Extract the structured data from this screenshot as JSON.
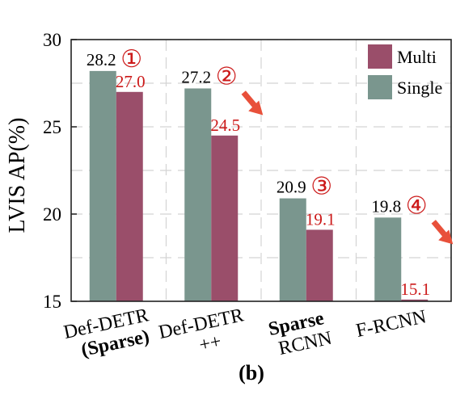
{
  "chart_data": {
    "type": "bar",
    "categories": [
      {
        "line1": "Def-DETR",
        "line2": "(Sparse)",
        "bold_line": 2
      },
      {
        "line1": "Def-DETR",
        "line2": "++",
        "bold_line": 0
      },
      {
        "line1": "Sparse",
        "line2": "RCNN",
        "bold_line": 1
      },
      {
        "line1": "F-RCNN",
        "line2": "",
        "bold_line": 0
      }
    ],
    "series": [
      {
        "name": "Single",
        "color": "#7a968e",
        "values": [
          28.2,
          27.2,
          20.9,
          19.8
        ]
      },
      {
        "name": "Multi",
        "color": "#9a4e6a",
        "values": [
          27.0,
          24.5,
          19.1,
          15.1
        ]
      }
    ],
    "value_labels": {
      "single": [
        "28.2",
        "27.2",
        "20.9",
        "19.8"
      ],
      "multi": [
        "27.0",
        "24.5",
        "19.1",
        "15.1"
      ],
      "single_color": "#000000",
      "multi_color": "#cc1a1a"
    },
    "markers": [
      "①",
      "②",
      "③",
      "④"
    ],
    "marker_color": "#cc1a1a",
    "arrow_color": "#e8503a",
    "arrows_on_categories": [
      1,
      3
    ],
    "ylabel": "LVIS AP(%)",
    "xlabel": "",
    "caption": "(b)",
    "ylim": [
      15,
      30
    ],
    "yticks": [
      15,
      20,
      25,
      30
    ],
    "grid": true,
    "legend_position": "top-right",
    "legend": [
      "Multi",
      "Single"
    ]
  }
}
